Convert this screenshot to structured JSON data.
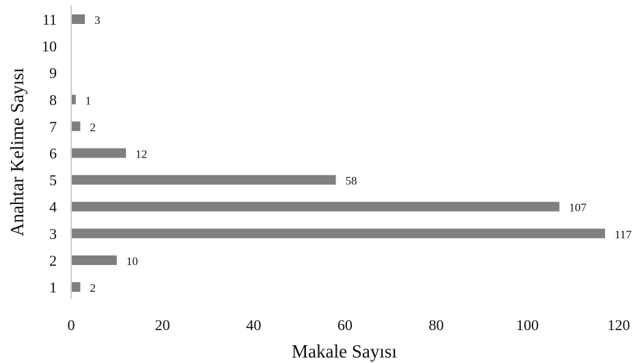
{
  "chart_data": {
    "type": "bar",
    "orientation": "horizontal",
    "title": "",
    "xlabel": "Makale Sayısı",
    "ylabel": "Anahtar Kelime Sayısı",
    "categories": [
      "1",
      "2",
      "3",
      "4",
      "5",
      "6",
      "7",
      "8",
      "9",
      "10",
      "11"
    ],
    "values": [
      2,
      10,
      117,
      107,
      58,
      12,
      2,
      1,
      null,
      null,
      3
    ],
    "data_labels": [
      "2",
      "10",
      "117",
      "107",
      "58",
      "12",
      "2",
      "1",
      "",
      "",
      "3"
    ],
    "xlim": [
      0,
      120
    ],
    "xticks": [
      "0",
      "20",
      "40",
      "60",
      "80",
      "100",
      "120"
    ],
    "grid": false,
    "legend": "none",
    "bar_color": "#7f7f7f",
    "axis_color": "#bfbfbf"
  }
}
